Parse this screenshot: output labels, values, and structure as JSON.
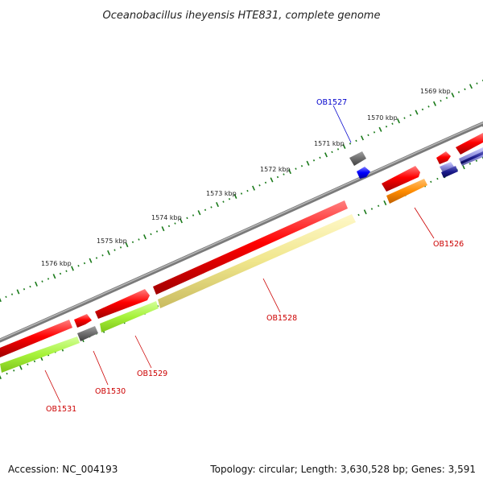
{
  "title": "Oceanobacillus iheyensis HTE831, complete genome",
  "accession_text": "Accession: NC_004193",
  "summary_text": "Topology: circular; Length: 3,630,528 bp; Genes: 3,591",
  "scale_ticks": [
    "1569 kbp",
    "1570 kbp",
    "1571 kbp",
    "1572 kbp",
    "1573 kbp",
    "1574 kbp",
    "1575 kbp",
    "1576 kbp"
  ],
  "colors": {
    "backbone": "#7a7a7a",
    "red_gene": "#ff0000",
    "dark_red": "#b00000",
    "gray_gene": "#6e6e6e",
    "blue_gene": "#0000ff",
    "navy_gene": "#1a1a8c",
    "light_blue_gene": "#8c8cdc",
    "green_gene": "#a6f23a",
    "khaki_gene": "#f0e68c",
    "orange_gene": "#ff8c00",
    "tick_green": "#1a7a1a",
    "label_red": "#cc0000",
    "label_blue": "#0000cc"
  },
  "gene_labels": [
    {
      "id": "OB1527",
      "color": "label_blue"
    },
    {
      "id": "OB1526",
      "color": "label_red"
    },
    {
      "id": "OB1528",
      "color": "label_red"
    },
    {
      "id": "OB1529",
      "color": "label_red"
    },
    {
      "id": "OB1530",
      "color": "label_red"
    },
    {
      "id": "OB1531",
      "color": "label_red"
    }
  ]
}
